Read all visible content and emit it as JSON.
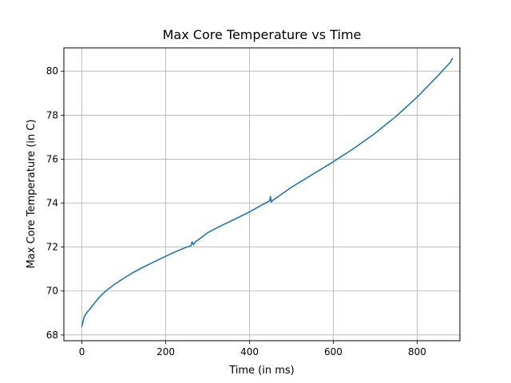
{
  "chart_data": {
    "type": "line",
    "title": "Max Core Temperature vs Time",
    "xlabel": "Time (in ms)",
    "ylabel": "Max Core Temperature (in C)",
    "xlim": [
      -43,
      902
    ],
    "ylim": [
      67.74,
      81.06
    ],
    "xticks": [
      0,
      200,
      400,
      600,
      800
    ],
    "yticks": [
      68,
      70,
      72,
      74,
      76,
      78,
      80
    ],
    "grid": true,
    "legend": "none",
    "series": [
      {
        "color": "#1f77b4",
        "x": [
          0,
          5,
          10,
          20,
          30,
          40,
          50,
          60,
          80,
          100,
          120,
          150,
          180,
          200,
          220,
          250,
          260,
          263,
          266,
          270,
          300,
          330,
          360,
          400,
          430,
          448,
          450,
          452,
          455,
          480,
          500,
          550,
          600,
          650,
          700,
          750,
          800,
          850,
          880,
          884
        ],
        "y": [
          68.4,
          68.8,
          68.98,
          69.2,
          69.45,
          69.68,
          69.88,
          70.05,
          70.33,
          70.58,
          70.82,
          71.12,
          71.4,
          71.58,
          71.76,
          72.0,
          72.05,
          72.24,
          72.1,
          72.22,
          72.65,
          72.95,
          73.22,
          73.6,
          73.92,
          74.1,
          74.3,
          74.05,
          74.12,
          74.45,
          74.72,
          75.3,
          75.88,
          76.5,
          77.18,
          77.95,
          78.82,
          79.8,
          80.42,
          80.58
        ]
      }
    ]
  }
}
